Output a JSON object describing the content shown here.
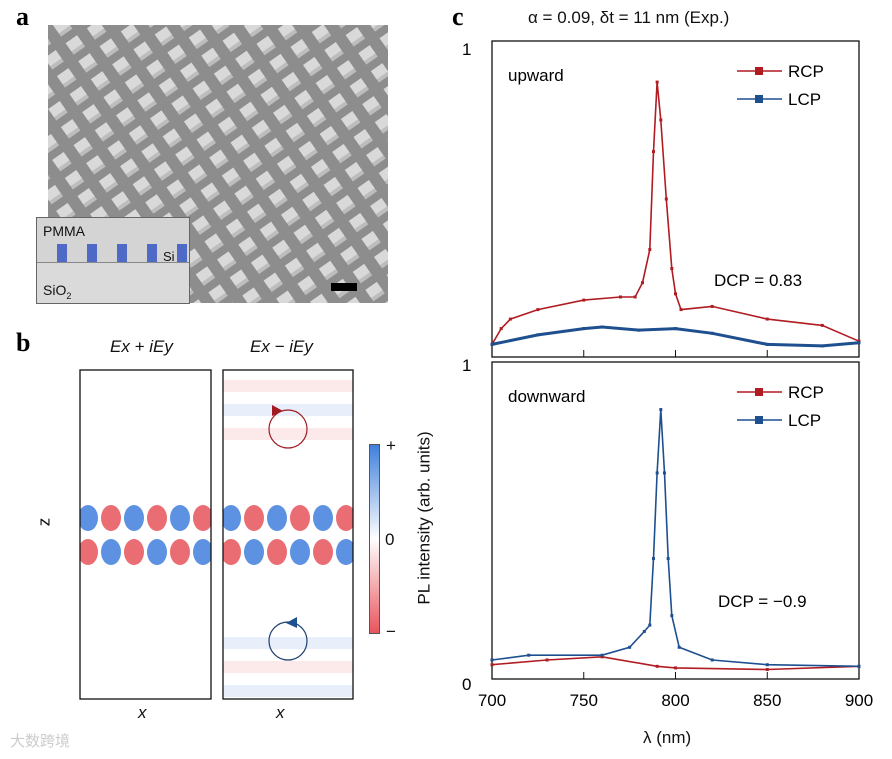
{
  "panels": {
    "a": "a",
    "b": "b",
    "c": "c"
  },
  "panel_a": {
    "inset_top": "PMMA",
    "inset_mid": "Si",
    "inset_bottom": "SiO",
    "inset_bottom_sub": "2"
  },
  "panel_b": {
    "left_title": "Ex + iEy",
    "right_title": "Ex − iEy",
    "z_label": "z",
    "x_label_left": "x",
    "x_label_right": "x",
    "cbar_plus": "+",
    "cbar_zero": "0",
    "cbar_minus": "−",
    "colors": {
      "pos": "#3f7fdc",
      "neg": "#e8545c"
    }
  },
  "watermark": "大数跨境",
  "chart_data": {
    "type": "line",
    "title": "α = 0.09, δt = 11 nm (Exp.)",
    "xlabel": "λ (nm)",
    "ylabel": "PL intensity (arb. units)",
    "xlim": [
      700,
      900
    ],
    "xticks": [
      700,
      750,
      800,
      850,
      900
    ],
    "colors": {
      "RCP": "#b01c22",
      "LCP": "#1e4f8f"
    },
    "subplots": [
      {
        "name": "upward",
        "ylim": [
          0,
          1
        ],
        "ytick_labels": [
          "1"
        ],
        "annotation": "DCP = 0.83",
        "legend": [
          "RCP",
          "LCP"
        ],
        "legend_position": "top-right",
        "series": [
          {
            "name": "RCP",
            "x": [
              700,
              705,
              710,
              725,
              750,
              770,
              778,
              782,
              786,
              788,
              790,
              792,
              795,
              798,
              800,
              803,
              820,
              850,
              880,
              900
            ],
            "y": [
              0.04,
              0.09,
              0.12,
              0.15,
              0.18,
              0.19,
              0.19,
              0.235,
              0.34,
              0.65,
              0.87,
              0.75,
              0.5,
              0.28,
              0.2,
              0.15,
              0.16,
              0.12,
              0.1,
              0.05
            ]
          },
          {
            "name": "LCP",
            "x": [
              700,
              725,
              750,
              760,
              780,
              800,
              820,
              850,
              880,
              900
            ],
            "y": [
              0.04,
              0.07,
              0.09,
              0.095,
              0.085,
              0.09,
              0.075,
              0.04,
              0.035,
              0.045
            ]
          }
        ]
      },
      {
        "name": "downward",
        "ylim": [
          0,
          1
        ],
        "ytick_labels": [
          "1",
          "0"
        ],
        "annotation": "DCP = −0.9",
        "legend": [
          "RCP",
          "LCP"
        ],
        "legend_position": "top-right",
        "series": [
          {
            "name": "RCP",
            "x": [
              700,
              730,
              760,
              790,
              800,
              850,
              900
            ],
            "y": [
              0.045,
              0.06,
              0.07,
              0.04,
              0.035,
              0.03,
              0.04
            ]
          },
          {
            "name": "LCP",
            "x": [
              700,
              720,
              760,
              775,
              783,
              786,
              788,
              790,
              792,
              794,
              796,
              798,
              802,
              820,
              850,
              900
            ],
            "y": [
              0.06,
              0.075,
              0.075,
              0.1,
              0.15,
              0.17,
              0.38,
              0.65,
              0.85,
              0.65,
              0.38,
              0.2,
              0.1,
              0.06,
              0.045,
              0.04
            ]
          }
        ]
      }
    ]
  }
}
